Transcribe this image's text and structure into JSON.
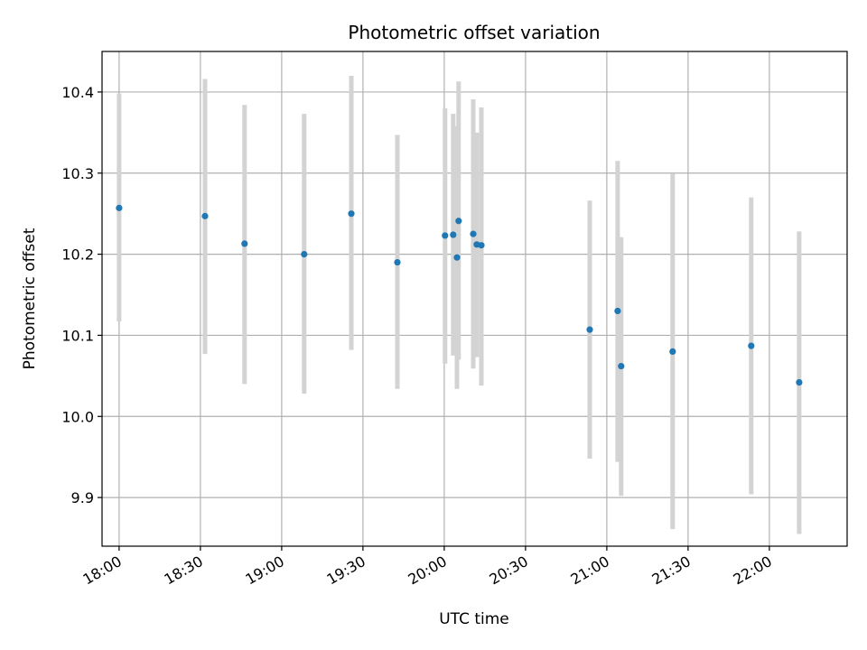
{
  "chart_data": {
    "type": "scatter",
    "title": "Photometric offset variation",
    "xlabel": "UTC time",
    "ylabel": "Photometric offset",
    "grid": true,
    "x_tick_labels": [
      "18:00",
      "18:30",
      "19:00",
      "19:30",
      "20:00",
      "20:30",
      "21:00",
      "21:30",
      "22:00"
    ],
    "y_tick_labels": [
      "9.9",
      "10.0",
      "10.1",
      "10.2",
      "10.3",
      "10.4"
    ],
    "xlim": [
      "17:53.7",
      "22:28.7"
    ],
    "ylim": [
      9.84,
      10.45
    ],
    "colors": {
      "points": "#1f77b4",
      "error_bars": "#d3d3d3",
      "grid": "#b0b0b0"
    },
    "points": [
      {
        "time": "18:00",
        "offset": 10.257,
        "err_low": 10.117,
        "err_high": 10.398
      },
      {
        "time": "18:31.7",
        "offset": 10.247,
        "err_low": 10.077,
        "err_high": 10.416
      },
      {
        "time": "18:46.3",
        "offset": 10.213,
        "err_low": 10.04,
        "err_high": 10.384
      },
      {
        "time": "19:08.3",
        "offset": 10.2,
        "err_low": 10.028,
        "err_high": 10.373
      },
      {
        "time": "19:25.7",
        "offset": 10.25,
        "err_low": 10.082,
        "err_high": 10.42
      },
      {
        "time": "19:42.7",
        "offset": 10.19,
        "err_low": 10.034,
        "err_high": 10.347
      },
      {
        "time": "20:00.3",
        "offset": 10.223,
        "err_low": 10.065,
        "err_high": 10.38
      },
      {
        "time": "20:03.3",
        "offset": 10.224,
        "err_low": 10.075,
        "err_high": 10.373
      },
      {
        "time": "20:04.7",
        "offset": 10.196,
        "err_low": 10.034,
        "err_high": 10.358
      },
      {
        "time": "20:05.3",
        "offset": 10.241,
        "err_low": 10.07,
        "err_high": 10.413
      },
      {
        "time": "20:10.7",
        "offset": 10.225,
        "err_low": 10.059,
        "err_high": 10.391
      },
      {
        "time": "20:12",
        "offset": 10.212,
        "err_low": 10.073,
        "err_high": 10.35
      },
      {
        "time": "20:13.7",
        "offset": 10.211,
        "err_low": 10.038,
        "err_high": 10.381
      },
      {
        "time": "20:53.7",
        "offset": 10.107,
        "err_low": 9.948,
        "err_high": 10.266
      },
      {
        "time": "21:04",
        "offset": 10.13,
        "err_low": 9.944,
        "err_high": 10.315
      },
      {
        "time": "21:05.3",
        "offset": 10.062,
        "err_low": 9.902,
        "err_high": 10.221
      },
      {
        "time": "21:24.3",
        "offset": 10.08,
        "err_low": 9.861,
        "err_high": 10.299
      },
      {
        "time": "21:53.3",
        "offset": 10.087,
        "err_low": 9.904,
        "err_high": 10.27
      },
      {
        "time": "22:11",
        "offset": 10.042,
        "err_low": 9.855,
        "err_high": 10.228
      }
    ]
  }
}
